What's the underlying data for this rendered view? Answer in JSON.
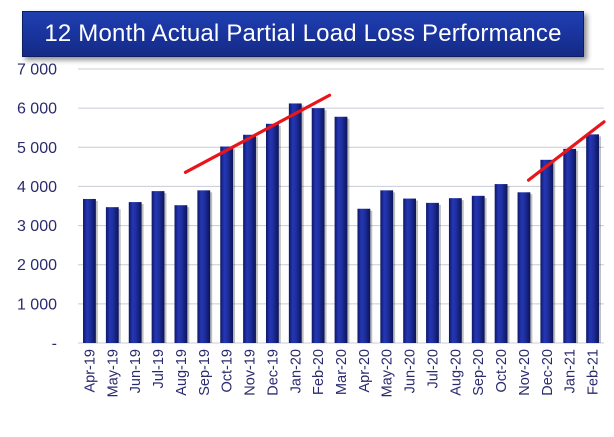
{
  "title": "12 Month Actual Partial Load Loss Performance",
  "colors": {
    "bar": "#1f2fa0",
    "bar_dark": "#0d1766",
    "banner": "#1a35a0",
    "trend": "#e8161b",
    "axis_text": "#2a2a6e"
  },
  "chart_data": {
    "type": "bar",
    "title": "12 Month Actual Partial Load Loss Performance",
    "xlabel": "",
    "ylabel": "",
    "ylim": [
      0,
      7000
    ],
    "yticks": [
      0,
      1000,
      2000,
      3000,
      4000,
      5000,
      6000,
      7000
    ],
    "ytick_labels": [
      "-",
      "1 000",
      "2 000",
      "3 000",
      "4 000",
      "5 000",
      "6 000",
      "7 000"
    ],
    "grid": true,
    "categories": [
      "Apr-19",
      "May-19",
      "Jun-19",
      "Jul-19",
      "Aug-19",
      "Sep-19",
      "Oct-19",
      "Nov-19",
      "Dec-19",
      "Jan-20",
      "Feb-20",
      "Mar-20",
      "Apr-20",
      "May-20",
      "Jun-20",
      "Jul-20",
      "Aug-20",
      "Sep-20",
      "Oct-20",
      "Nov-20",
      "Dec-20",
      "Jan-21",
      "Feb-21"
    ],
    "values": [
      3680,
      3470,
      3600,
      3880,
      3520,
      3900,
      5020,
      5320,
      5600,
      6120,
      6000,
      5780,
      3430,
      3900,
      3690,
      3580,
      3700,
      3760,
      4060,
      3850,
      4680,
      4960,
      5330
    ],
    "trend_lines": [
      {
        "from": {
          "x": "Aug-19",
          "y": 4360
        },
        "to": {
          "x": "Feb-20",
          "y": 6330
        }
      },
      {
        "from": {
          "x": "Nov-20",
          "y": 4160
        },
        "to": {
          "x": "Feb-21",
          "y": 5650
        }
      }
    ]
  }
}
